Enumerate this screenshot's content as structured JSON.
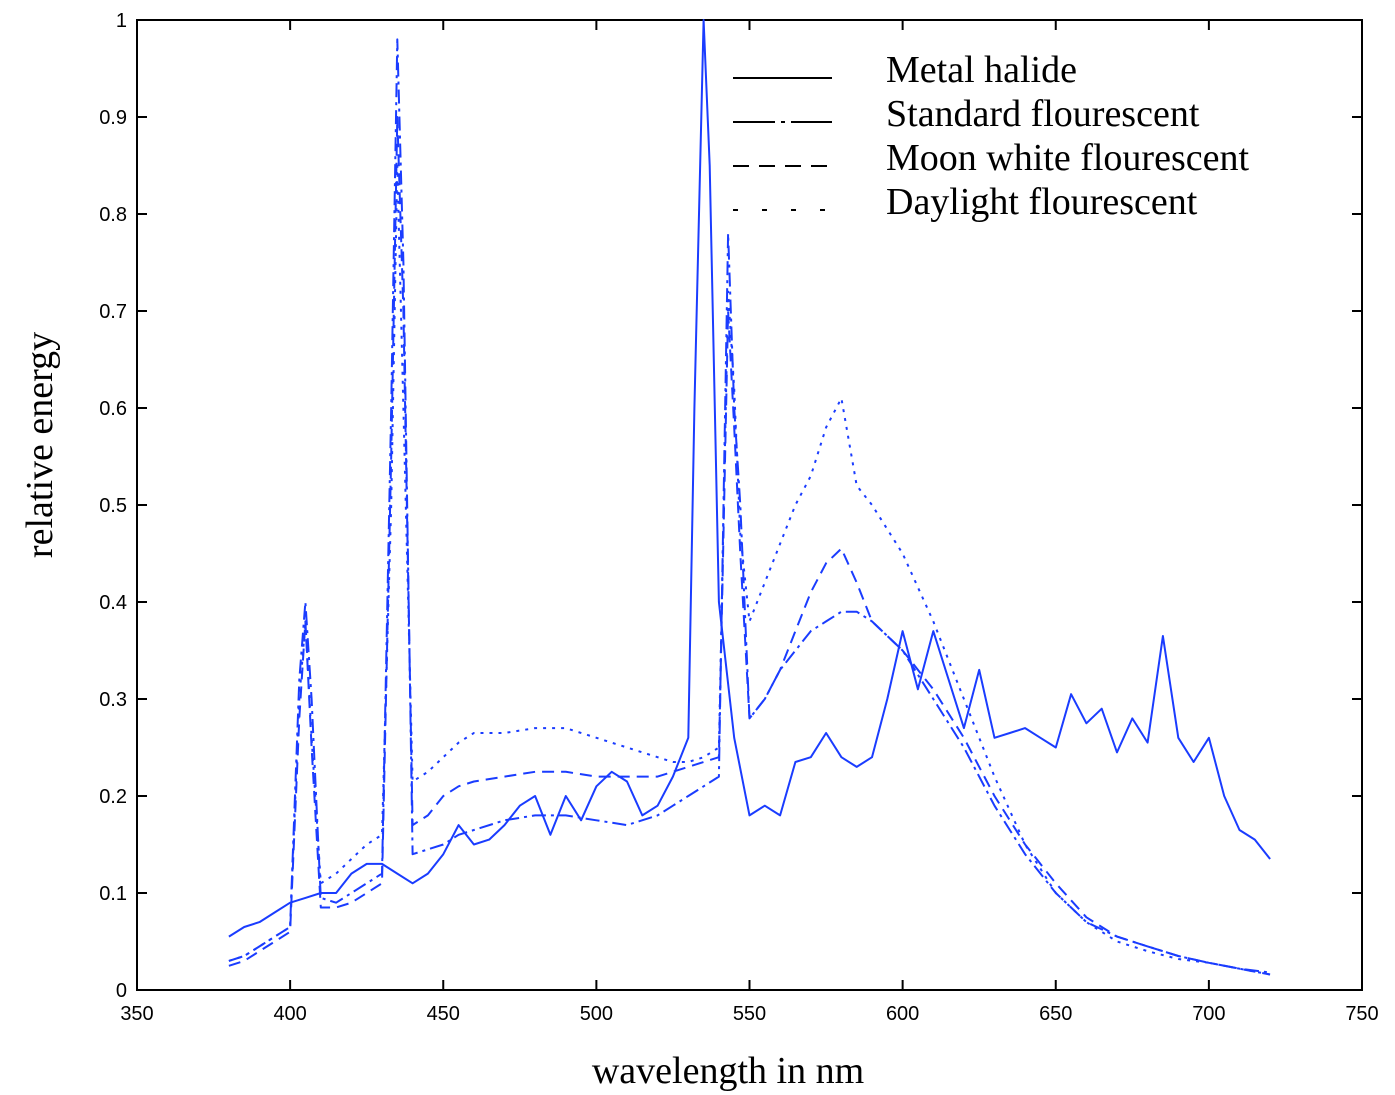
{
  "chart_data": {
    "type": "line",
    "xlabel": "wavelength in nm",
    "ylabel": "relative energy",
    "xlim": [
      350,
      750
    ],
    "ylim": [
      0,
      1
    ],
    "xticks": [
      350,
      400,
      450,
      500,
      550,
      600,
      650,
      700,
      750
    ],
    "yticks": [
      0,
      0.1,
      0.2,
      0.3,
      0.4,
      0.5,
      0.6,
      0.7,
      0.8,
      0.9,
      1
    ],
    "xtick_labels": [
      "350",
      "400",
      "450",
      "500",
      "550",
      "600",
      "650",
      "700",
      "750"
    ],
    "ytick_labels": [
      "0",
      "0.1",
      "0.2",
      "0.3",
      "0.4",
      "0.5",
      "0.6",
      "0.7",
      "0.8",
      "0.9",
      "1"
    ],
    "grid": false,
    "legend_position": "top-right",
    "line_color": "#1a3cff",
    "series": [
      {
        "name": "Metal halide",
        "dash": "solid",
        "x": [
          380,
          385,
          390,
          395,
          400,
          405,
          410,
          415,
          420,
          425,
          430,
          435,
          440,
          445,
          450,
          455,
          460,
          465,
          470,
          475,
          480,
          485,
          490,
          495,
          500,
          505,
          510,
          515,
          520,
          525,
          530,
          532,
          535,
          537,
          540,
          545,
          550,
          555,
          560,
          565,
          570,
          575,
          580,
          585,
          590,
          595,
          600,
          605,
          610,
          615,
          620,
          625,
          630,
          635,
          640,
          645,
          650,
          655,
          660,
          665,
          670,
          675,
          680,
          685,
          690,
          695,
          700,
          705,
          710,
          715,
          720
        ],
        "y": [
          0.055,
          0.065,
          0.07,
          0.08,
          0.09,
          0.095,
          0.1,
          0.1,
          0.12,
          0.13,
          0.13,
          0.12,
          0.11,
          0.12,
          0.14,
          0.17,
          0.15,
          0.155,
          0.17,
          0.19,
          0.2,
          0.16,
          0.2,
          0.175,
          0.21,
          0.225,
          0.215,
          0.18,
          0.19,
          0.22,
          0.26,
          0.6,
          1.0,
          0.85,
          0.4,
          0.26,
          0.18,
          0.19,
          0.18,
          0.235,
          0.24,
          0.265,
          0.24,
          0.23,
          0.24,
          0.3,
          0.37,
          0.31,
          0.37,
          0.32,
          0.27,
          0.33,
          0.26,
          0.265,
          0.27,
          0.26,
          0.25,
          0.305,
          0.275,
          0.29,
          0.245,
          0.28,
          0.255,
          0.365,
          0.26,
          0.235,
          0.26,
          0.2,
          0.165,
          0.155,
          0.135
        ]
      },
      {
        "name": "Standard flourescent",
        "dash": "dash-dot",
        "x": [
          380,
          385,
          390,
          395,
          400,
          403,
          405,
          407,
          410,
          415,
          420,
          425,
          430,
          433,
          435,
          437,
          440,
          445,
          450,
          455,
          460,
          470,
          480,
          490,
          500,
          510,
          520,
          525,
          530,
          535,
          540,
          543,
          545,
          547,
          550,
          555,
          560,
          565,
          570,
          575,
          580,
          585,
          590,
          600,
          610,
          620,
          630,
          640,
          650,
          660,
          670,
          680,
          690,
          700,
          710,
          720
        ],
        "y": [
          0.03,
          0.035,
          0.045,
          0.055,
          0.065,
          0.32,
          0.4,
          0.3,
          0.095,
          0.09,
          0.1,
          0.11,
          0.12,
          0.6,
          0.98,
          0.75,
          0.14,
          0.145,
          0.15,
          0.16,
          0.165,
          0.175,
          0.18,
          0.18,
          0.175,
          0.17,
          0.18,
          0.19,
          0.2,
          0.21,
          0.22,
          0.78,
          0.6,
          0.5,
          0.28,
          0.3,
          0.33,
          0.35,
          0.37,
          0.38,
          0.39,
          0.39,
          0.38,
          0.35,
          0.3,
          0.25,
          0.19,
          0.14,
          0.1,
          0.07,
          0.055,
          0.045,
          0.035,
          0.028,
          0.022,
          0.018
        ]
      },
      {
        "name": "Moon white flourescent",
        "dash": "dashed",
        "x": [
          380,
          385,
          390,
          395,
          400,
          403,
          405,
          407,
          410,
          415,
          420,
          425,
          430,
          433,
          435,
          437,
          440,
          445,
          450,
          455,
          460,
          470,
          480,
          490,
          500,
          510,
          520,
          525,
          530,
          535,
          540,
          543,
          545,
          547,
          550,
          555,
          560,
          565,
          570,
          575,
          580,
          585,
          590,
          600,
          610,
          620,
          630,
          640,
          650,
          660,
          670,
          680,
          690,
          700,
          710,
          720
        ],
        "y": [
          0.025,
          0.03,
          0.04,
          0.05,
          0.06,
          0.28,
          0.38,
          0.25,
          0.085,
          0.085,
          0.09,
          0.1,
          0.11,
          0.55,
          0.9,
          0.7,
          0.17,
          0.18,
          0.2,
          0.21,
          0.215,
          0.22,
          0.225,
          0.225,
          0.22,
          0.22,
          0.22,
          0.225,
          0.23,
          0.235,
          0.24,
          0.7,
          0.58,
          0.45,
          0.28,
          0.3,
          0.33,
          0.37,
          0.41,
          0.44,
          0.455,
          0.42,
          0.38,
          0.35,
          0.31,
          0.26,
          0.2,
          0.15,
          0.11,
          0.075,
          0.055,
          0.045,
          0.035,
          0.028,
          0.022,
          0.016
        ]
      },
      {
        "name": "Daylight flourescent",
        "dash": "sparse-dot",
        "x": [
          380,
          385,
          390,
          395,
          400,
          403,
          405,
          407,
          410,
          415,
          420,
          425,
          430,
          433,
          435,
          437,
          440,
          445,
          450,
          455,
          460,
          470,
          480,
          490,
          500,
          510,
          520,
          525,
          530,
          535,
          540,
          543,
          545,
          547,
          550,
          555,
          560,
          565,
          570,
          575,
          580,
          585,
          590,
          600,
          610,
          620,
          630,
          640,
          650,
          660,
          670,
          680,
          690,
          700,
          710,
          720
        ],
        "y": [
          0.03,
          0.035,
          0.045,
          0.055,
          0.065,
          0.3,
          0.38,
          0.26,
          0.11,
          0.12,
          0.135,
          0.15,
          0.16,
          0.5,
          0.85,
          0.6,
          0.215,
          0.225,
          0.24,
          0.255,
          0.265,
          0.265,
          0.27,
          0.27,
          0.26,
          0.25,
          0.24,
          0.235,
          0.235,
          0.24,
          0.25,
          0.72,
          0.62,
          0.47,
          0.38,
          0.42,
          0.46,
          0.5,
          0.53,
          0.58,
          0.61,
          0.52,
          0.5,
          0.45,
          0.38,
          0.3,
          0.22,
          0.15,
          0.1,
          0.07,
          0.05,
          0.04,
          0.032,
          0.028,
          0.022,
          0.016
        ]
      }
    ]
  }
}
